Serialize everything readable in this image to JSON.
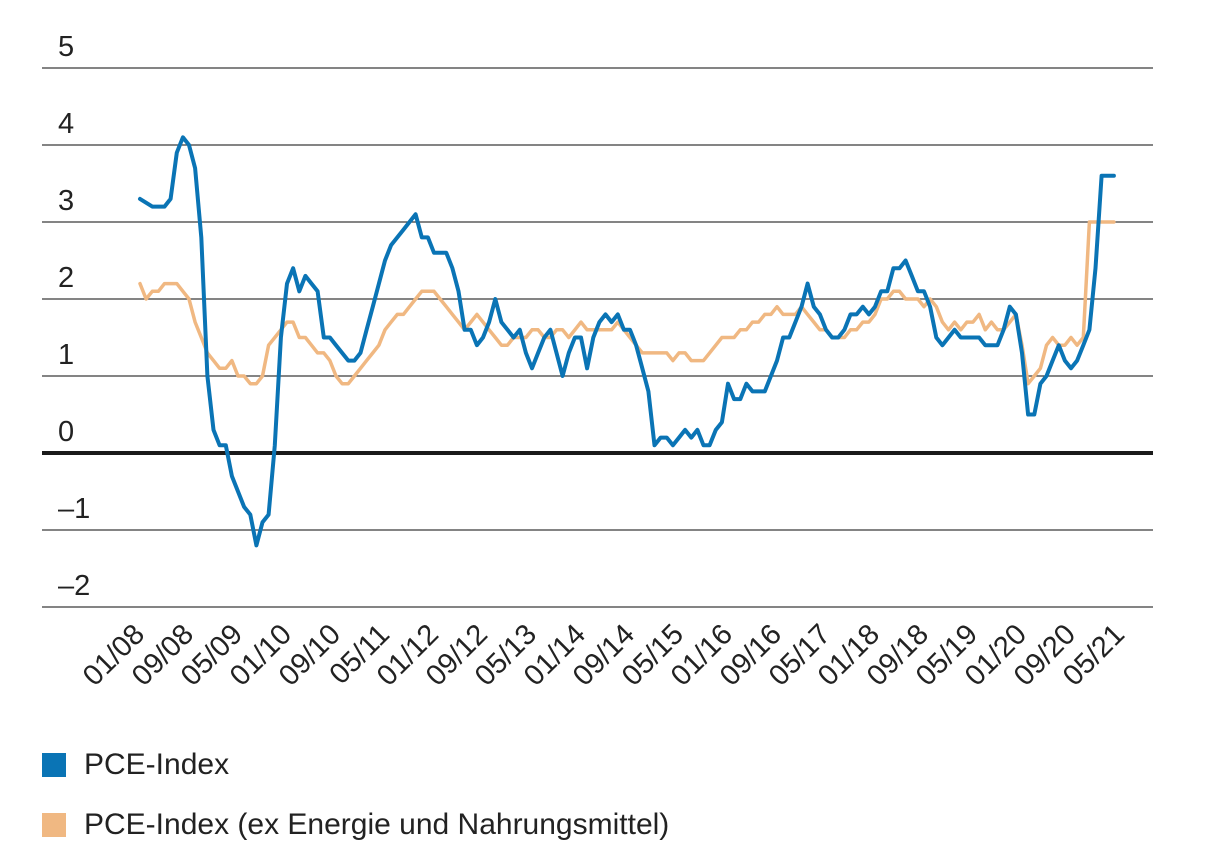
{
  "chart_data": {
    "type": "line",
    "title": "",
    "xlabel": "",
    "ylabel": "",
    "ylim": [
      -2,
      5
    ],
    "yticks": [
      5,
      4,
      3,
      2,
      1,
      0,
      -1,
      -2
    ],
    "ytick_labels": [
      "5",
      "4",
      "3",
      "2",
      "1",
      "0",
      "–1",
      "–2"
    ],
    "x_tick_labels": [
      "01/08",
      "09/08",
      "05/09",
      "01/10",
      "09/10",
      "05/11",
      "01/12",
      "09/12",
      "05/13",
      "01/14",
      "09/14",
      "05/15",
      "01/16",
      "09/16",
      "05/17",
      "01/18",
      "09/18",
      "05/19",
      "01/20",
      "09/20",
      "05/21"
    ],
    "x_tick_months": [
      0,
      8,
      16,
      24,
      32,
      40,
      48,
      56,
      64,
      72,
      80,
      88,
      96,
      104,
      112,
      120,
      128,
      136,
      144,
      152,
      160
    ],
    "x_unit": "months since 01/08",
    "grid": true,
    "zero_line": true,
    "legend_position": "bottom-left",
    "series": [
      {
        "name": "PCE-Index",
        "color": "#0a74b5",
        "points": [
          [
            0,
            3.3
          ],
          [
            2,
            3.2
          ],
          [
            4,
            3.2
          ],
          [
            5,
            3.3
          ],
          [
            6,
            3.9
          ],
          [
            7,
            4.1
          ],
          [
            8,
            4.0
          ],
          [
            9,
            3.7
          ],
          [
            10,
            2.8
          ],
          [
            11,
            1.0
          ],
          [
            12,
            0.3
          ],
          [
            13,
            0.1
          ],
          [
            14,
            0.1
          ],
          [
            15,
            -0.3
          ],
          [
            16,
            -0.5
          ],
          [
            17,
            -0.7
          ],
          [
            18,
            -0.8
          ],
          [
            19,
            -1.2
          ],
          [
            20,
            -0.9
          ],
          [
            21,
            -0.8
          ],
          [
            22,
            0.1
          ],
          [
            23,
            1.5
          ],
          [
            24,
            2.2
          ],
          [
            25,
            2.4
          ],
          [
            26,
            2.1
          ],
          [
            27,
            2.3
          ],
          [
            28,
            2.2
          ],
          [
            29,
            2.1
          ],
          [
            30,
            1.5
          ],
          [
            31,
            1.5
          ],
          [
            32,
            1.4
          ],
          [
            33,
            1.3
          ],
          [
            34,
            1.2
          ],
          [
            35,
            1.2
          ],
          [
            36,
            1.3
          ],
          [
            37,
            1.6
          ],
          [
            38,
            1.9
          ],
          [
            39,
            2.2
          ],
          [
            40,
            2.5
          ],
          [
            41,
            2.7
          ],
          [
            42,
            2.8
          ],
          [
            43,
            2.9
          ],
          [
            44,
            3.0
          ],
          [
            45,
            3.1
          ],
          [
            46,
            2.8
          ],
          [
            47,
            2.8
          ],
          [
            48,
            2.6
          ],
          [
            49,
            2.6
          ],
          [
            50,
            2.6
          ],
          [
            51,
            2.4
          ],
          [
            52,
            2.1
          ],
          [
            53,
            1.6
          ],
          [
            54,
            1.6
          ],
          [
            55,
            1.4
          ],
          [
            56,
            1.5
          ],
          [
            57,
            1.7
          ],
          [
            58,
            2.0
          ],
          [
            59,
            1.7
          ],
          [
            60,
            1.6
          ],
          [
            61,
            1.5
          ],
          [
            62,
            1.6
          ],
          [
            63,
            1.3
          ],
          [
            64,
            1.1
          ],
          [
            65,
            1.3
          ],
          [
            66,
            1.5
          ],
          [
            67,
            1.6
          ],
          [
            68,
            1.3
          ],
          [
            69,
            1.0
          ],
          [
            70,
            1.3
          ],
          [
            71,
            1.5
          ],
          [
            72,
            1.5
          ],
          [
            73,
            1.1
          ],
          [
            74,
            1.5
          ],
          [
            75,
            1.7
          ],
          [
            76,
            1.8
          ],
          [
            77,
            1.7
          ],
          [
            78,
            1.8
          ],
          [
            79,
            1.6
          ],
          [
            80,
            1.6
          ],
          [
            81,
            1.4
          ],
          [
            82,
            1.1
          ],
          [
            83,
            0.8
          ],
          [
            84,
            0.1
          ],
          [
            85,
            0.2
          ],
          [
            86,
            0.2
          ],
          [
            87,
            0.1
          ],
          [
            88,
            0.2
          ],
          [
            89,
            0.3
          ],
          [
            90,
            0.2
          ],
          [
            91,
            0.3
          ],
          [
            92,
            0.1
          ],
          [
            93,
            0.1
          ],
          [
            94,
            0.3
          ],
          [
            95,
            0.4
          ],
          [
            96,
            0.9
          ],
          [
            97,
            0.7
          ],
          [
            98,
            0.7
          ],
          [
            99,
            0.9
          ],
          [
            100,
            0.8
          ],
          [
            101,
            0.8
          ],
          [
            102,
            0.8
          ],
          [
            103,
            1.0
          ],
          [
            104,
            1.2
          ],
          [
            105,
            1.5
          ],
          [
            106,
            1.5
          ],
          [
            107,
            1.7
          ],
          [
            108,
            1.9
          ],
          [
            109,
            2.2
          ],
          [
            110,
            1.9
          ],
          [
            111,
            1.8
          ],
          [
            112,
            1.6
          ],
          [
            113,
            1.5
          ],
          [
            114,
            1.5
          ],
          [
            115,
            1.6
          ],
          [
            116,
            1.8
          ],
          [
            117,
            1.8
          ],
          [
            118,
            1.9
          ],
          [
            119,
            1.8
          ],
          [
            120,
            1.9
          ],
          [
            121,
            2.1
          ],
          [
            122,
            2.1
          ],
          [
            123,
            2.4
          ],
          [
            124,
            2.4
          ],
          [
            125,
            2.5
          ],
          [
            126,
            2.3
          ],
          [
            127,
            2.1
          ],
          [
            128,
            2.1
          ],
          [
            129,
            1.9
          ],
          [
            130,
            1.5
          ],
          [
            131,
            1.4
          ],
          [
            132,
            1.5
          ],
          [
            133,
            1.6
          ],
          [
            134,
            1.5
          ],
          [
            135,
            1.5
          ],
          [
            136,
            1.5
          ],
          [
            137,
            1.5
          ],
          [
            138,
            1.4
          ],
          [
            139,
            1.4
          ],
          [
            140,
            1.4
          ],
          [
            141,
            1.6
          ],
          [
            142,
            1.9
          ],
          [
            143,
            1.8
          ],
          [
            144,
            1.3
          ],
          [
            145,
            0.5
          ],
          [
            146,
            0.5
          ],
          [
            147,
            0.9
          ],
          [
            148,
            1.0
          ],
          [
            149,
            1.2
          ],
          [
            150,
            1.4
          ],
          [
            151,
            1.2
          ],
          [
            152,
            1.1
          ],
          [
            153,
            1.2
          ],
          [
            154,
            1.4
          ],
          [
            155,
            1.6
          ],
          [
            156,
            2.4
          ],
          [
            157,
            3.6
          ],
          [
            158,
            3.6
          ],
          [
            159,
            3.6
          ]
        ]
      },
      {
        "name": "PCE-Index (ex Energie und Nahrungsmittel)",
        "color": "#f0b882",
        "points": [
          [
            0,
            2.2
          ],
          [
            1,
            2.0
          ],
          [
            2,
            2.1
          ],
          [
            3,
            2.1
          ],
          [
            4,
            2.2
          ],
          [
            5,
            2.2
          ],
          [
            6,
            2.2
          ],
          [
            7,
            2.1
          ],
          [
            8,
            2.0
          ],
          [
            9,
            1.7
          ],
          [
            10,
            1.5
          ],
          [
            11,
            1.3
          ],
          [
            12,
            1.2
          ],
          [
            13,
            1.1
          ],
          [
            14,
            1.1
          ],
          [
            15,
            1.2
          ],
          [
            16,
            1.0
          ],
          [
            17,
            1.0
          ],
          [
            18,
            0.9
          ],
          [
            19,
            0.9
          ],
          [
            20,
            1.0
          ],
          [
            21,
            1.4
          ],
          [
            22,
            1.5
          ],
          [
            23,
            1.6
          ],
          [
            24,
            1.7
          ],
          [
            25,
            1.7
          ],
          [
            26,
            1.5
          ],
          [
            27,
            1.5
          ],
          [
            28,
            1.4
          ],
          [
            29,
            1.3
          ],
          [
            30,
            1.3
          ],
          [
            31,
            1.2
          ],
          [
            32,
            1.0
          ],
          [
            33,
            0.9
          ],
          [
            34,
            0.9
          ],
          [
            35,
            1.0
          ],
          [
            36,
            1.1
          ],
          [
            37,
            1.2
          ],
          [
            38,
            1.3
          ],
          [
            39,
            1.4
          ],
          [
            40,
            1.6
          ],
          [
            41,
            1.7
          ],
          [
            42,
            1.8
          ],
          [
            43,
            1.8
          ],
          [
            44,
            1.9
          ],
          [
            45,
            2.0
          ],
          [
            46,
            2.1
          ],
          [
            47,
            2.1
          ],
          [
            48,
            2.1
          ],
          [
            49,
            2.0
          ],
          [
            50,
            1.9
          ],
          [
            51,
            1.8
          ],
          [
            52,
            1.7
          ],
          [
            53,
            1.6
          ],
          [
            54,
            1.7
          ],
          [
            55,
            1.8
          ],
          [
            56,
            1.7
          ],
          [
            57,
            1.6
          ],
          [
            58,
            1.5
          ],
          [
            59,
            1.4
          ],
          [
            60,
            1.4
          ],
          [
            61,
            1.5
          ],
          [
            62,
            1.5
          ],
          [
            63,
            1.5
          ],
          [
            64,
            1.6
          ],
          [
            65,
            1.6
          ],
          [
            66,
            1.5
          ],
          [
            67,
            1.5
          ],
          [
            68,
            1.6
          ],
          [
            69,
            1.6
          ],
          [
            70,
            1.5
          ],
          [
            71,
            1.6
          ],
          [
            72,
            1.7
          ],
          [
            73,
            1.6
          ],
          [
            74,
            1.6
          ],
          [
            75,
            1.6
          ],
          [
            76,
            1.6
          ],
          [
            77,
            1.6
          ],
          [
            78,
            1.7
          ],
          [
            79,
            1.6
          ],
          [
            80,
            1.5
          ],
          [
            81,
            1.4
          ],
          [
            82,
            1.3
          ],
          [
            83,
            1.3
          ],
          [
            84,
            1.3
          ],
          [
            85,
            1.3
          ],
          [
            86,
            1.3
          ],
          [
            87,
            1.2
          ],
          [
            88,
            1.3
          ],
          [
            89,
            1.3
          ],
          [
            90,
            1.2
          ],
          [
            91,
            1.2
          ],
          [
            92,
            1.2
          ],
          [
            93,
            1.3
          ],
          [
            94,
            1.4
          ],
          [
            95,
            1.5
          ],
          [
            96,
            1.5
          ],
          [
            97,
            1.5
          ],
          [
            98,
            1.6
          ],
          [
            99,
            1.6
          ],
          [
            100,
            1.7
          ],
          [
            101,
            1.7
          ],
          [
            102,
            1.8
          ],
          [
            103,
            1.8
          ],
          [
            104,
            1.9
          ],
          [
            105,
            1.8
          ],
          [
            106,
            1.8
          ],
          [
            107,
            1.8
          ],
          [
            108,
            1.9
          ],
          [
            109,
            1.8
          ],
          [
            110,
            1.7
          ],
          [
            111,
            1.6
          ],
          [
            112,
            1.6
          ],
          [
            113,
            1.5
          ],
          [
            114,
            1.5
          ],
          [
            115,
            1.5
          ],
          [
            116,
            1.6
          ],
          [
            117,
            1.6
          ],
          [
            118,
            1.7
          ],
          [
            119,
            1.7
          ],
          [
            120,
            1.8
          ],
          [
            121,
            2.0
          ],
          [
            122,
            2.0
          ],
          [
            123,
            2.1
          ],
          [
            124,
            2.1
          ],
          [
            125,
            2.0
          ],
          [
            126,
            2.0
          ],
          [
            127,
            2.0
          ],
          [
            128,
            1.9
          ],
          [
            129,
            2.0
          ],
          [
            130,
            1.9
          ],
          [
            131,
            1.7
          ],
          [
            132,
            1.6
          ],
          [
            133,
            1.7
          ],
          [
            134,
            1.6
          ],
          [
            135,
            1.7
          ],
          [
            136,
            1.7
          ],
          [
            137,
            1.8
          ],
          [
            138,
            1.6
          ],
          [
            139,
            1.7
          ],
          [
            140,
            1.6
          ],
          [
            141,
            1.6
          ],
          [
            142,
            1.7
          ],
          [
            143,
            1.8
          ],
          [
            144,
            1.4
          ],
          [
            145,
            0.9
          ],
          [
            146,
            1.0
          ],
          [
            147,
            1.1
          ],
          [
            148,
            1.4
          ],
          [
            149,
            1.5
          ],
          [
            150,
            1.4
          ],
          [
            151,
            1.4
          ],
          [
            152,
            1.5
          ],
          [
            153,
            1.4
          ],
          [
            154,
            1.5
          ],
          [
            155,
            3.0
          ],
          [
            156,
            3.0
          ],
          [
            157,
            3.0
          ],
          [
            158,
            3.0
          ],
          [
            159,
            3.0
          ]
        ]
      }
    ]
  }
}
